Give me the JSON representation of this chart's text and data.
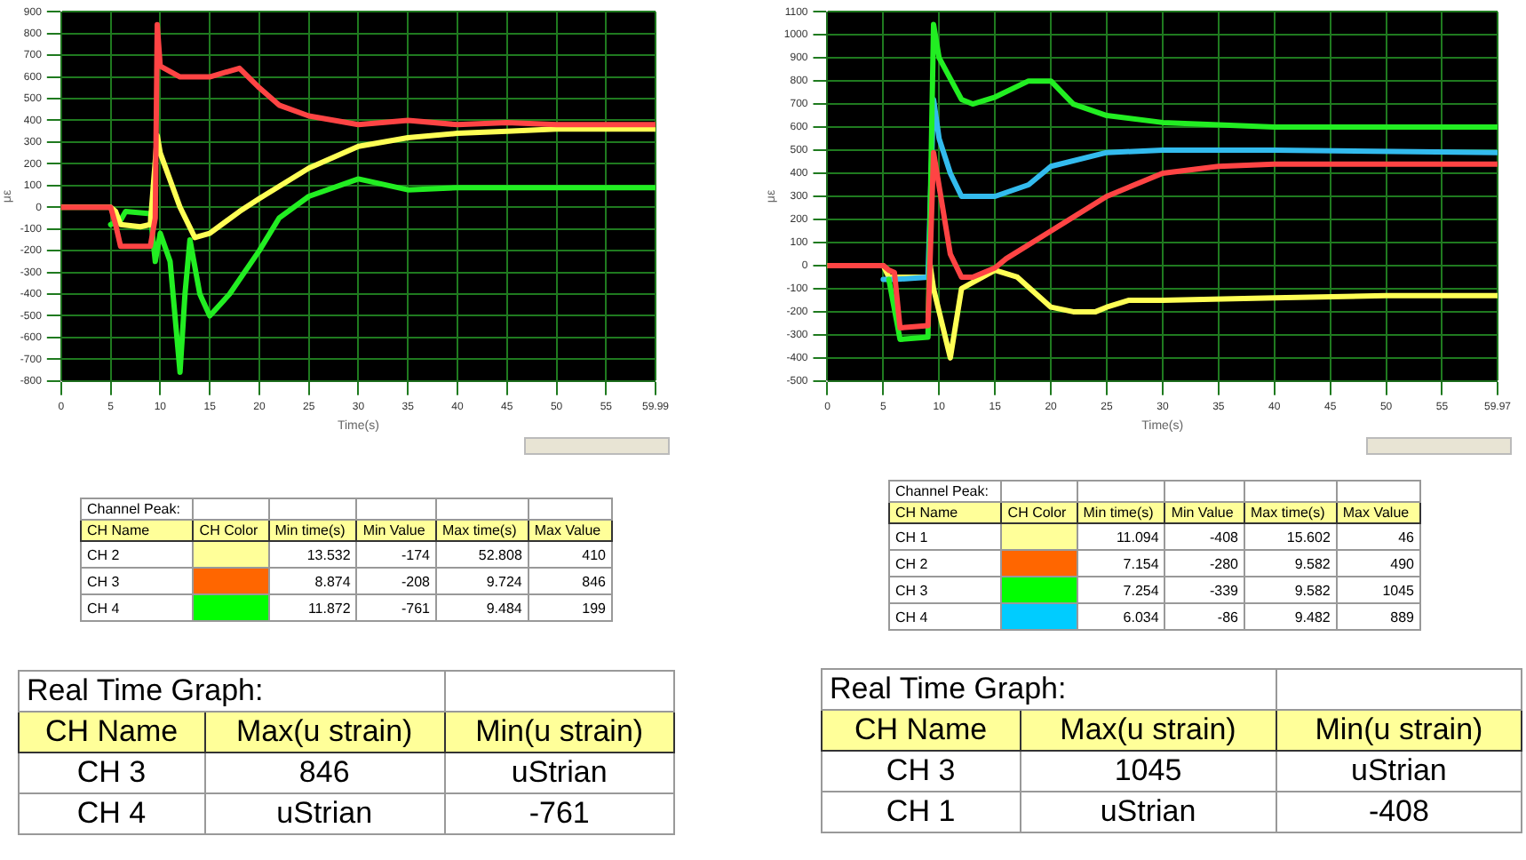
{
  "chart_data": [
    {
      "type": "line",
      "xlabel": "Time(s)",
      "ylabel": "με",
      "xlim": [
        0,
        59.99
      ],
      "xticks": [
        0,
        5,
        10,
        15,
        20,
        25,
        30,
        35,
        40,
        45,
        50,
        55,
        59.99
      ],
      "ylim": [
        -800,
        900
      ],
      "yticks": [
        -800,
        -700,
        -600,
        -500,
        -400,
        -300,
        -200,
        -100,
        0,
        100,
        200,
        300,
        400,
        500,
        600,
        700,
        800,
        900
      ],
      "grid": true,
      "series": [
        {
          "color": "#ff4444",
          "x": [
            0,
            5,
            5.5,
            6,
            9,
            9.5,
            9.7,
            10,
            12,
            15,
            18,
            20,
            22,
            25,
            30,
            35,
            40,
            45,
            50,
            55,
            59.99
          ],
          "values": [
            0,
            0,
            -80,
            -180,
            -180,
            -50,
            840,
            650,
            600,
            600,
            640,
            550,
            470,
            420,
            380,
            400,
            380,
            390,
            380,
            380,
            380
          ]
        },
        {
          "color": "#ffff55",
          "x": [
            0,
            5,
            5.5,
            6,
            8,
            9,
            9.7,
            10,
            12,
            13.5,
            15,
            18,
            20,
            25,
            30,
            35,
            40,
            45,
            50,
            55,
            59.99
          ],
          "values": [
            0,
            0,
            -20,
            -80,
            -90,
            -80,
            330,
            250,
            0,
            -140,
            -120,
            -20,
            40,
            180,
            280,
            320,
            340,
            350,
            360,
            360,
            360
          ]
        },
        {
          "color": "#22ee22",
          "x": [
            5,
            6,
            6.5,
            9,
            9.5,
            10,
            11,
            12,
            12.5,
            13,
            14,
            15,
            17,
            20,
            22,
            25,
            30,
            35,
            40,
            45,
            50,
            55,
            59.99
          ],
          "values": [
            -80,
            -60,
            -20,
            -30,
            -250,
            -120,
            -250,
            -760,
            -400,
            -150,
            -400,
            -500,
            -400,
            -200,
            -50,
            50,
            130,
            80,
            90,
            90,
            90,
            90,
            90
          ]
        }
      ]
    },
    {
      "type": "line",
      "xlabel": "Time(s)",
      "ylabel": "με",
      "xlim": [
        0,
        59.97
      ],
      "xticks": [
        0,
        5,
        10,
        15,
        20,
        25,
        30,
        35,
        40,
        45,
        50,
        55,
        59.97
      ],
      "ylim": [
        -500,
        1100
      ],
      "yticks": [
        -500,
        -400,
        -300,
        -200,
        -100,
        0,
        100,
        200,
        300,
        400,
        500,
        600,
        700,
        800,
        900,
        1000,
        1100
      ],
      "grid": true,
      "series": [
        {
          "color": "#ff4444",
          "x": [
            0,
            5,
            5.5,
            6,
            6.5,
            9,
            9.5,
            11,
            12,
            13,
            15,
            16,
            20,
            25,
            30,
            35,
            40,
            50,
            59.97
          ],
          "values": [
            0,
            0,
            -20,
            -30,
            -270,
            -260,
            490,
            50,
            -50,
            -50,
            -10,
            30,
            150,
            300,
            400,
            430,
            440,
            440,
            440
          ]
        },
        {
          "color": "#22ee22",
          "x": [
            5.5,
            6.5,
            9,
            9.5,
            10,
            12,
            13,
            15,
            18,
            20,
            22,
            25,
            30,
            40,
            50,
            59.97
          ],
          "values": [
            -60,
            -320,
            -310,
            1045,
            900,
            720,
            700,
            730,
            800,
            800,
            700,
            650,
            620,
            600,
            600,
            600
          ]
        },
        {
          "color": "#33bbee",
          "x": [
            5,
            6,
            9,
            9.5,
            10,
            11,
            12,
            15,
            18,
            20,
            25,
            30,
            40,
            59.97
          ],
          "values": [
            -60,
            -60,
            -50,
            720,
            550,
            400,
            300,
            300,
            350,
            430,
            490,
            500,
            500,
            490
          ]
        },
        {
          "color": "#ffff55",
          "x": [
            0,
            5,
            5.5,
            9,
            9.2,
            9.5,
            11,
            12,
            15,
            17,
            20,
            22,
            24,
            25,
            27,
            30,
            40,
            50,
            59.97
          ],
          "values": [
            0,
            0,
            -50,
            -50,
            0,
            -100,
            -400,
            -100,
            -20,
            -50,
            -180,
            -200,
            -200,
            -180,
            -150,
            -150,
            -140,
            -130,
            -130
          ]
        }
      ]
    },
    {
      "type": "other",
      "title": "Channel Peak:",
      "categories": [
        "CH Name",
        "CH Color",
        "Min time(s)",
        "Min Value",
        "Max time(s)",
        "Max Value"
      ],
      "y_categories": [
        "CH 2",
        "CH 3",
        "CH 4"
      ],
      "cell_labels": [
        [
          "13.532",
          "-174",
          "52.808",
          "410"
        ],
        [
          "8.874",
          "-208",
          "9.724",
          "846"
        ],
        [
          "11.872",
          "-761",
          "9.484",
          "199"
        ]
      ]
    },
    {
      "type": "other",
      "title": "Real Time Graph:",
      "categories": [
        "CH Name",
        "Max(u strain)",
        "Min(u strain)"
      ],
      "y_categories": [
        "CH 3",
        "CH 4"
      ],
      "cell_labels": [
        [
          "846",
          "uStrian"
        ],
        [
          "uStrian",
          "-761"
        ]
      ]
    },
    {
      "type": "other",
      "title": "Channel Peak:",
      "categories": [
        "CH Name",
        "CH Color",
        "Min time(s)",
        "Min Value",
        "Max time(s)",
        "Max Value"
      ],
      "y_categories": [
        "CH 1",
        "CH 2",
        "CH 3",
        "CH 4"
      ],
      "cell_labels": [
        [
          "11.094",
          "-408",
          "15.602",
          "46"
        ],
        [
          "7.154",
          "-280",
          "9.582",
          "490"
        ],
        [
          "7.254",
          "-339",
          "9.582",
          "1045"
        ],
        [
          "6.034",
          "-86",
          "9.482",
          "889"
        ]
      ]
    },
    {
      "type": "other",
      "title": "Real Time Graph:",
      "categories": [
        "CH Name",
        "Max(u strain)",
        "Min(u strain)"
      ],
      "y_categories": [
        "CH 3",
        "CH 1"
      ],
      "cell_labels": [
        [
          "1045",
          "uStrian"
        ],
        [
          "uStrian",
          "-408"
        ]
      ]
    }
  ]
}
